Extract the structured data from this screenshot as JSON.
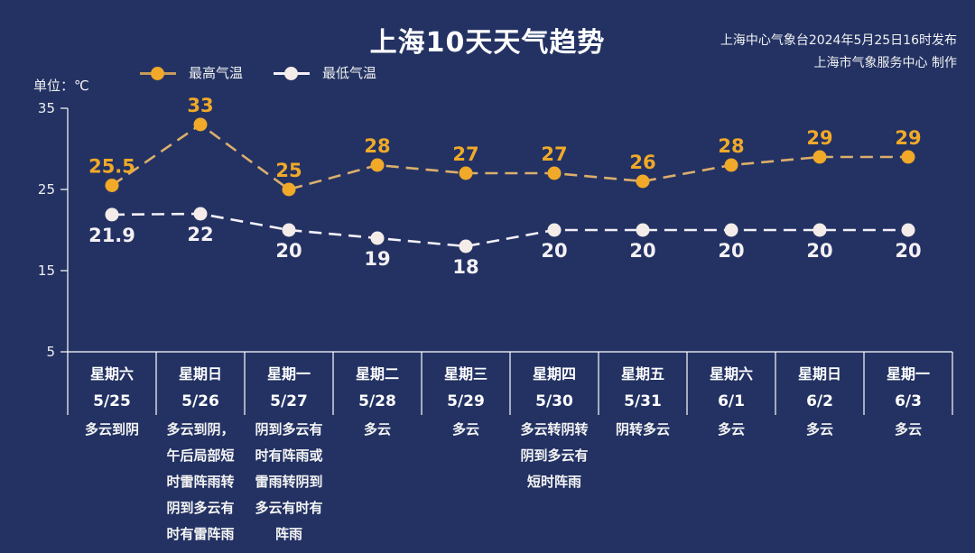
{
  "header": {
    "title": "上海10天天气趋势",
    "credit_line1": "上海中心气象台2024年5月25日16时发布",
    "credit_line2": "上海市气象服务中心 制作",
    "unit": "单位：℃"
  },
  "legend": {
    "high": "最高气温",
    "low": "最低气温"
  },
  "colors": {
    "background": "#233263",
    "high": "#f0a928",
    "high_line": "#e0b070",
    "low": "#f4ece8",
    "axis": "#ffffff"
  },
  "days": [
    {
      "week": "星期六",
      "date": "5/25",
      "weather": [
        "多云到阴"
      ]
    },
    {
      "week": "星期日",
      "date": "5/26",
      "weather": [
        "多云到阴，",
        "午后局部短",
        "时雷阵雨转",
        "阴到多云有",
        "时有雷阵雨"
      ]
    },
    {
      "week": "星期一",
      "date": "5/27",
      "weather": [
        "阴到多云有",
        "时有阵雨或",
        "雷雨转阴到",
        "多云有时有",
        "阵雨"
      ]
    },
    {
      "week": "星期二",
      "date": "5/28",
      "weather": [
        "多云"
      ]
    },
    {
      "week": "星期三",
      "date": "5/29",
      "weather": [
        "多云"
      ]
    },
    {
      "week": "星期四",
      "date": "5/30",
      "weather": [
        "多云转阴转",
        "阴到多云有",
        "短时阵雨"
      ]
    },
    {
      "week": "星期五",
      "date": "5/31",
      "weather": [
        "阴转多云"
      ]
    },
    {
      "week": "星期六",
      "date": "6/1",
      "weather": [
        "多云"
      ]
    },
    {
      "week": "星期日",
      "date": "6/2",
      "weather": [
        "多云"
      ]
    },
    {
      "week": "星期一",
      "date": "6/3",
      "weather": [
        "多云"
      ]
    }
  ],
  "chart_data": {
    "type": "line",
    "title": "上海10天天气趋势",
    "xlabel": "",
    "ylabel": "单位：℃",
    "ylim": [
      5,
      35
    ],
    "yticks": [
      5,
      15,
      25,
      35
    ],
    "grid": false,
    "legend_position": "top-left",
    "categories": [
      "5/25",
      "5/26",
      "5/27",
      "5/28",
      "5/29",
      "5/30",
      "5/31",
      "6/1",
      "6/2",
      "6/3"
    ],
    "series": [
      {
        "name": "最高气温",
        "values": [
          25.5,
          33,
          25,
          28,
          27,
          27,
          26,
          28,
          29,
          29
        ],
        "labels": [
          "25.5",
          "33",
          "25",
          "28",
          "27",
          "27",
          "26",
          "28",
          "29",
          "29"
        ]
      },
      {
        "name": "最低气温",
        "values": [
          21.9,
          22,
          20,
          19,
          18,
          20,
          20,
          20,
          20,
          20
        ],
        "labels": [
          "21.9",
          "22",
          "20",
          "19",
          "18",
          "20",
          "20",
          "20",
          "20",
          "20"
        ]
      }
    ]
  }
}
